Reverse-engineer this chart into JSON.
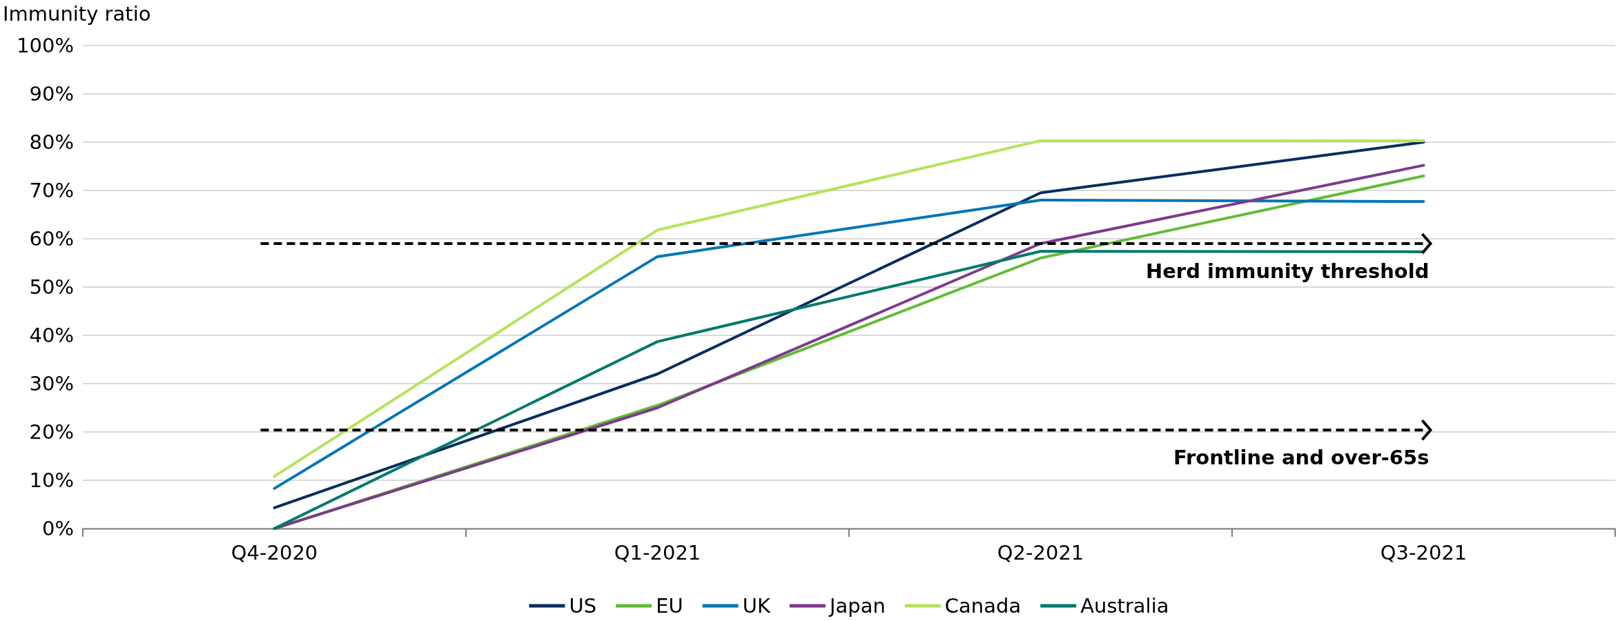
{
  "chart_data": {
    "type": "line",
    "ylabel": "Immunity ratio",
    "categories": [
      "Q4-2020",
      "Q1-2021",
      "Q2-2021",
      "Q3-2021"
    ],
    "series": [
      {
        "name": "US",
        "color": "#0a2d5e",
        "values": [
          4.3,
          32,
          69.5,
          80
        ]
      },
      {
        "name": "EU",
        "color": "#62bb35",
        "values": [
          0,
          25.5,
          56,
          73
        ]
      },
      {
        "name": "UK",
        "color": "#0076b6",
        "values": [
          8.3,
          56.3,
          68,
          67.7
        ]
      },
      {
        "name": "Japan",
        "color": "#7d3a8c",
        "values": [
          0,
          25,
          59,
          75.2
        ]
      },
      {
        "name": "Canada",
        "color": "#b5e35a",
        "values": [
          10.8,
          61.8,
          80.3,
          80.3
        ]
      },
      {
        "name": "Australia",
        "color": "#00796b",
        "values": [
          0,
          38.7,
          57.4,
          57.3
        ]
      }
    ],
    "ylim": [
      0,
      100
    ],
    "yticks": [
      {
        "value": 0,
        "label": "0%"
      },
      {
        "value": 10,
        "label": "10%"
      },
      {
        "value": 20,
        "label": "20%"
      },
      {
        "value": 30,
        "label": "30%"
      },
      {
        "value": 40,
        "label": "40%"
      },
      {
        "value": 50,
        "label": "50%"
      },
      {
        "value": 60,
        "label": "60%"
      },
      {
        "value": 70,
        "label": "70%"
      },
      {
        "value": 80,
        "label": "80%"
      },
      {
        "value": 90,
        "label": "90%"
      },
      {
        "value": 100,
        "label": "100%"
      }
    ],
    "grid": "y",
    "legend": "bottom",
    "marker": "none",
    "line_style": "solid",
    "ref_lines": [
      {
        "axis": "y",
        "value": 59,
        "label": "Herd immunity threshold",
        "color": "#000000",
        "line_style": "dashed"
      },
      {
        "axis": "y",
        "value": 20.4,
        "label": "Frontline and over-65s",
        "color": "#000000",
        "line_style": "dashed"
      }
    ]
  }
}
